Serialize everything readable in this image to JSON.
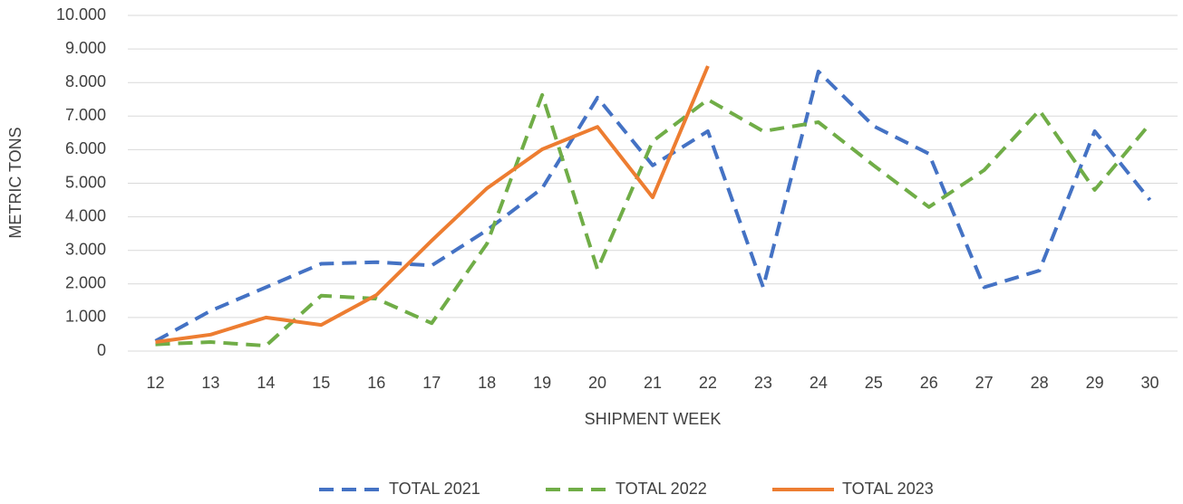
{
  "chart_data": {
    "type": "line",
    "x_label": "SHIPMENT WEEK",
    "y_label": "METRIC TONS",
    "categories": [
      "12",
      "13",
      "14",
      "15",
      "16",
      "17",
      "18",
      "19",
      "20",
      "21",
      "22",
      "23",
      "24",
      "25",
      "26",
      "27",
      "28",
      "29",
      "30"
    ],
    "series": [
      {
        "name": "TOTAL 2021",
        "color": "#4472c4",
        "line_style": "dashed",
        "values": [
          300,
          1200,
          1900,
          2600,
          2650,
          2550,
          3600,
          4850,
          7550,
          5530,
          6550,
          1900,
          8330,
          6700,
          5880,
          1900,
          2400,
          6550,
          4500
        ]
      },
      {
        "name": "TOTAL 2022",
        "color": "#70ad47",
        "line_style": "dashed",
        "values": [
          200,
          270,
          160,
          1650,
          1560,
          830,
          3200,
          7630,
          2430,
          6250,
          7490,
          6550,
          6820,
          5530,
          4290,
          5390,
          7170,
          4800,
          6770
        ]
      },
      {
        "name": "TOTAL 2023",
        "color": "#ed7d31",
        "line_style": "solid",
        "values": [
          270,
          490,
          1000,
          780,
          1670,
          3290,
          4850,
          6010,
          6680,
          4580,
          8490,
          null,
          null,
          null,
          null,
          null,
          null,
          null,
          null
        ]
      }
    ],
    "ylim": [
      0,
      10000
    ],
    "yticks": [
      0,
      {
        "value": 1000,
        "label": "1.000"
      },
      {
        "value": 2000,
        "label": "2.000"
      },
      {
        "value": 3000,
        "label": "3.000"
      },
      {
        "value": 4000,
        "label": "4.000"
      },
      {
        "value": 5000,
        "label": "5.000"
      },
      {
        "value": 6000,
        "label": "6.000"
      },
      {
        "value": 7000,
        "label": "7.000"
      },
      {
        "value": 8000,
        "label": "8.000"
      },
      {
        "value": 9000,
        "label": "9.000"
      },
      {
        "value": 10000,
        "label": "10.000"
      }
    ],
    "grid": true,
    "legend": "bottom"
  }
}
